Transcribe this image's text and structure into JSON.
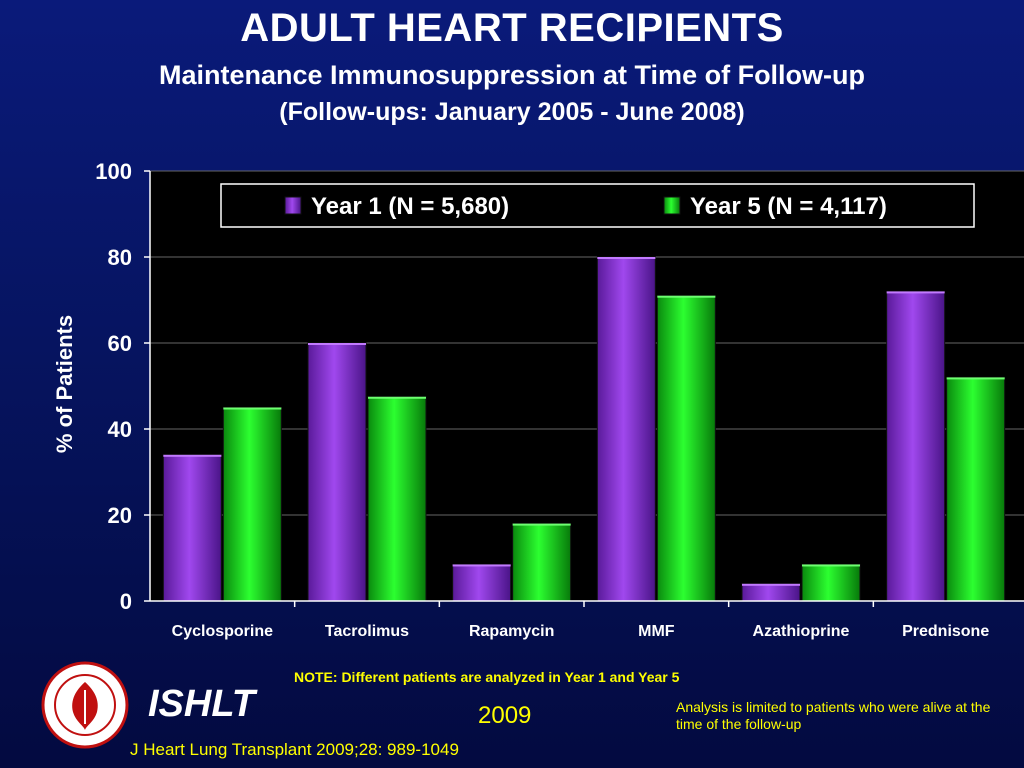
{
  "header": {
    "title": "ADULT HEART RECIPIENTS",
    "subtitle": "Maintenance Immunosuppression at Time of Follow-up",
    "period": "(Follow-ups: January 2005  -  June 2008)"
  },
  "chart_data": {
    "type": "bar",
    "categories": [
      "Cyclosporine",
      "Tacrolimus",
      "Rapamycin",
      "MMF",
      "Azathioprine",
      "Prednisone"
    ],
    "series": [
      {
        "name": "Year 1 (N = 5,680)",
        "values": [
          34,
          60,
          8.5,
          80,
          4,
          72
        ],
        "color": "#9a3de0"
      },
      {
        "name": "Year 5 (N = 4,117)",
        "values": [
          45,
          47.5,
          18,
          71,
          8.5,
          52
        ],
        "color": "#19e61e"
      }
    ],
    "ylabel": "% of Patients",
    "ylim": [
      0,
      100
    ],
    "yticks": [
      0,
      20,
      40,
      60,
      80,
      100
    ],
    "grid": true,
    "legend": "top"
  },
  "footer": {
    "note": "NOTE: Different patients are analyzed in Year 1 and Year 5",
    "org": "ISHLT",
    "year": "2009",
    "analysis": "Analysis is limited to patients who were alive at the time of the follow-up",
    "citation": "J Heart Lung Transplant 2009;28: 989-1049"
  }
}
